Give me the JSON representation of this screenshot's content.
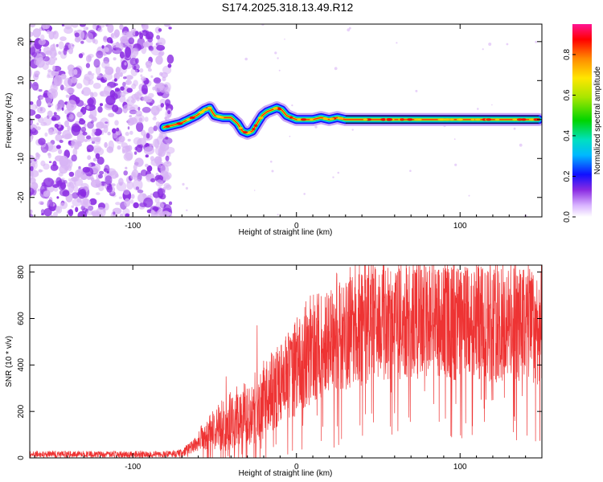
{
  "page": {
    "title": "S174.2025.318.13.49.R12"
  },
  "colors": {
    "frame": "#000000",
    "snr_line": "#ee3333",
    "noise": "#8a2be2",
    "noise_light": "#d8b4f5"
  },
  "chart_data": [
    {
      "id": "spectrogram",
      "type": "heatmap",
      "title": "S174.2025.318.13.49.R12",
      "xlabel": "Height of straight line (km)",
      "ylabel": "Frequency (Hz)",
      "xlim": [
        -163,
        150
      ],
      "ylim": [
        -25,
        24.5
      ],
      "xticks": [
        -100,
        0,
        100
      ],
      "yticks": [
        -20,
        -10,
        0,
        10,
        20
      ],
      "noise_region_x": [
        -163,
        -80
      ],
      "signal_ridge": {
        "x": [
          -81,
          -76,
          -71,
          -66,
          -61,
          -56,
          -53,
          -50,
          -45,
          -40,
          -36,
          -33,
          -30,
          -27,
          -24,
          -21,
          -18,
          -15,
          -12,
          -9,
          -6,
          -3,
          0,
          5,
          10,
          15,
          20,
          25,
          30,
          40,
          60,
          80,
          100,
          120,
          140,
          148
        ],
        "freq_hz": [
          -2,
          -1.5,
          -1,
          0,
          1,
          2.5,
          3,
          1,
          0.5,
          0.5,
          -1,
          -3,
          -3.5,
          -3,
          -1,
          1,
          2,
          2.5,
          3,
          2.5,
          1,
          0.5,
          0,
          0,
          0,
          0.5,
          0,
          0.5,
          0,
          0,
          0,
          0,
          0,
          0,
          0,
          0
        ]
      },
      "colorbar": {
        "label": "Normalized spectral amplitude",
        "range": [
          0.0,
          0.95
        ],
        "ticks": [
          "0.0",
          "0.2",
          "0.4",
          "0.6",
          "0.8"
        ]
      }
    },
    {
      "id": "snr",
      "type": "line",
      "xlabel": "Height of straight line (km)",
      "ylabel": "SNR (10 * v/v)",
      "xlim": [
        -163,
        150
      ],
      "ylim": [
        0,
        830
      ],
      "xticks": [
        -100,
        0,
        100
      ],
      "yticks": [
        0,
        200,
        400,
        600,
        800
      ],
      "series": [
        {
          "name": "SNR",
          "envelope": {
            "x": [
              -163,
              -140,
              -120,
              -100,
              -80,
              -70,
              -65,
              -60,
              -55,
              -50,
              -45,
              -40,
              -35,
              -30,
              -25,
              -20,
              -15,
              -10,
              -5,
              0,
              5,
              10,
              15,
              20,
              30,
              40,
              50,
              60,
              80,
              100,
              120,
              140,
              150
            ],
            "mean": [
              15,
              15,
              15,
              15,
              15,
              20,
              40,
              70,
              90,
              110,
              130,
              145,
              160,
              180,
              200,
              230,
              270,
              310,
              340,
              370,
              410,
              440,
              470,
              500,
              530,
              560,
              580,
              590,
              590,
              580,
              575,
              570,
              560
            ],
            "spread": [
              12,
              12,
              12,
              12,
              12,
              15,
              25,
              40,
              60,
              80,
              100,
              110,
              120,
              130,
              140,
              150,
              160,
              170,
              180,
              190,
              200,
              210,
              220,
              230,
              240,
              250,
              250,
              250,
              250,
              250,
              250,
              250,
              250
            ]
          },
          "peaks": {
            "x": [
              -43,
              -24,
              36,
              48,
              80,
              83
            ],
            "y": [
              350,
              570,
              830,
              820,
              800,
              830
            ]
          }
        }
      ]
    }
  ]
}
